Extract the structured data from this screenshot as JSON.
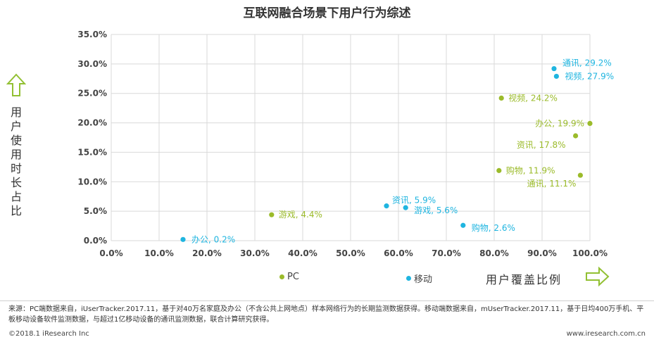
{
  "header": {
    "title": "互联网融合场景下用户行为综述"
  },
  "axes": {
    "ylabel": "用户使用时长占比",
    "xlabel": "用户覆盖比例"
  },
  "legend": {
    "pc_label": "PC",
    "mobile_label": "移动"
  },
  "colors": {
    "pc": "#9bbb2a",
    "mobile": "#1fb5e0",
    "grid": "#d9d9d9",
    "arrow": "#92c033"
  },
  "chart_data": {
    "type": "scatter",
    "title": "互联网融合场景下用户行为综述",
    "xlabel": "用户覆盖比例",
    "ylabel": "用户使用时长占比",
    "xlim": [
      0,
      100
    ],
    "ylim": [
      0,
      35
    ],
    "x_ticks": [
      "0.0%",
      "10.0%",
      "20.0%",
      "30.0%",
      "40.0%",
      "50.0%",
      "60.0%",
      "70.0%",
      "80.0%",
      "90.0%",
      "100.0%"
    ],
    "y_ticks": [
      "0.0%",
      "5.0%",
      "10.0%",
      "15.0%",
      "20.0%",
      "25.0%",
      "30.0%",
      "35.0%"
    ],
    "grid": true,
    "legend_position": "bottom",
    "series": [
      {
        "name": "PC",
        "points": [
          {
            "label": "视频, 24.2%",
            "x": 81.5,
            "y": 24.2
          },
          {
            "label": "办公, 19.9%",
            "x": 100.0,
            "y": 19.9
          },
          {
            "label": "资讯, 17.8%",
            "x": 97.0,
            "y": 17.8
          },
          {
            "label": "购物, 11.9%",
            "x": 81.0,
            "y": 11.9
          },
          {
            "label": "通讯, 11.1%",
            "x": 98.0,
            "y": 11.1
          },
          {
            "label": "游戏, 4.4%",
            "x": 33.5,
            "y": 4.4
          }
        ]
      },
      {
        "name": "移动",
        "points": [
          {
            "label": "通讯, 29.2%",
            "x": 92.5,
            "y": 29.2
          },
          {
            "label": "视频, 27.9%",
            "x": 93.0,
            "y": 27.9
          },
          {
            "label": "资讯, 5.9%",
            "x": 57.5,
            "y": 5.9
          },
          {
            "label": "游戏, 5.6%",
            "x": 61.5,
            "y": 5.6
          },
          {
            "label": "购物, 2.6%",
            "x": 73.5,
            "y": 2.6
          },
          {
            "label": "办公, 0.2%",
            "x": 15.0,
            "y": 0.2
          }
        ]
      }
    ]
  },
  "footer": {
    "source": "来源：PC端数据来自，iUserTracker.2017.11，基于对40万名家庭及办公（不含公共上网地点）样本网络行为的长期监测数据获得。移动端数据来自，mUserTracker.2017.11，基于日均400万手机、平板移动设备软件监测数据，与超过1亿移动设备的通讯监测数据，联合计算研究获得。",
    "copyright": "©2018.1 iResearch Inc",
    "website": "www.iresearch.com.cn"
  }
}
